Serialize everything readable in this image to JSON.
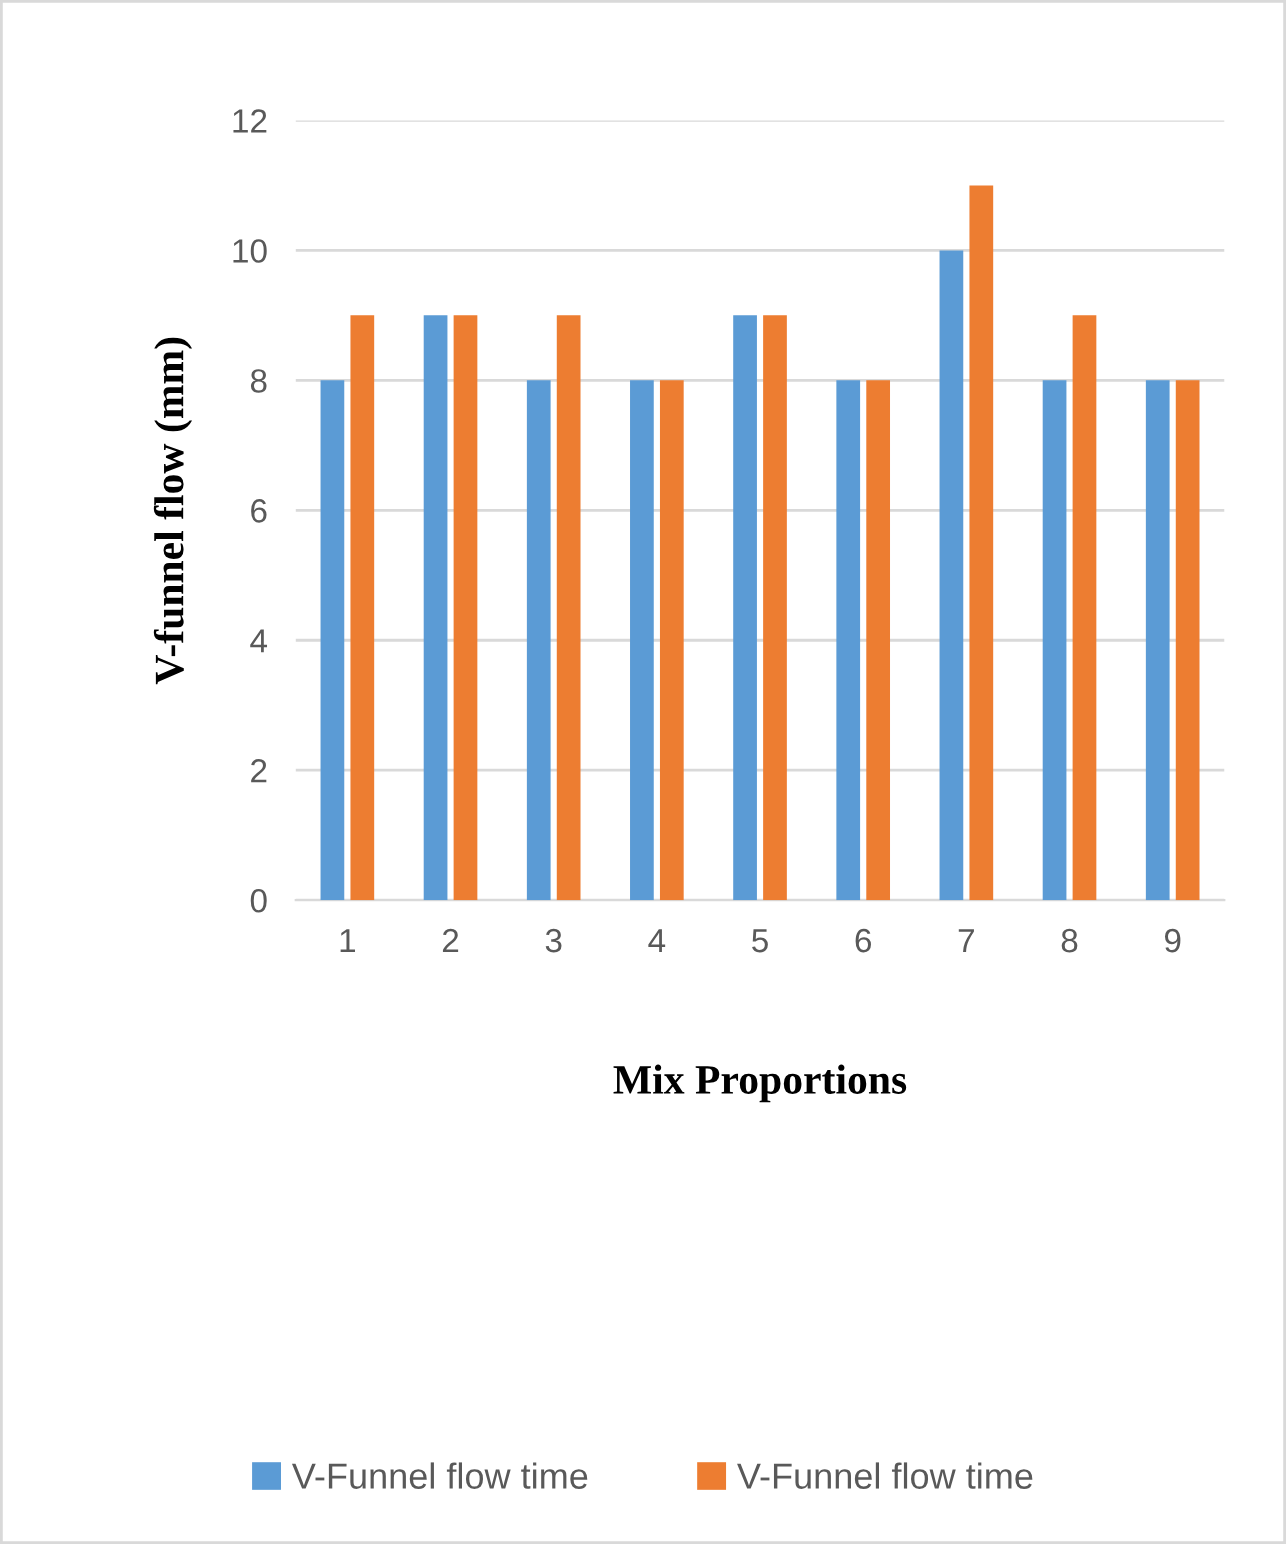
{
  "chart_data": {
    "type": "bar",
    "xlabel": "Mix Proportions",
    "ylabel": "V-funnel flow (mm)",
    "categories": [
      "1",
      "2",
      "3",
      "4",
      "5",
      "6",
      "7",
      "8",
      "9"
    ],
    "series": [
      {
        "name": "V-Funnel flow time",
        "color": "#5b9bd5",
        "values": [
          8,
          9,
          8,
          8,
          9,
          8,
          10,
          8,
          8
        ]
      },
      {
        "name": "V-Funnel flow time",
        "color": "#ed7d31",
        "values": [
          9,
          9,
          9,
          8,
          9,
          8,
          11,
          9,
          8
        ]
      }
    ],
    "ylim": [
      0,
      12
    ],
    "yticks": [
      0,
      2,
      4,
      6,
      8,
      10,
      12
    ],
    "grid": "y",
    "legend": "bottom"
  }
}
